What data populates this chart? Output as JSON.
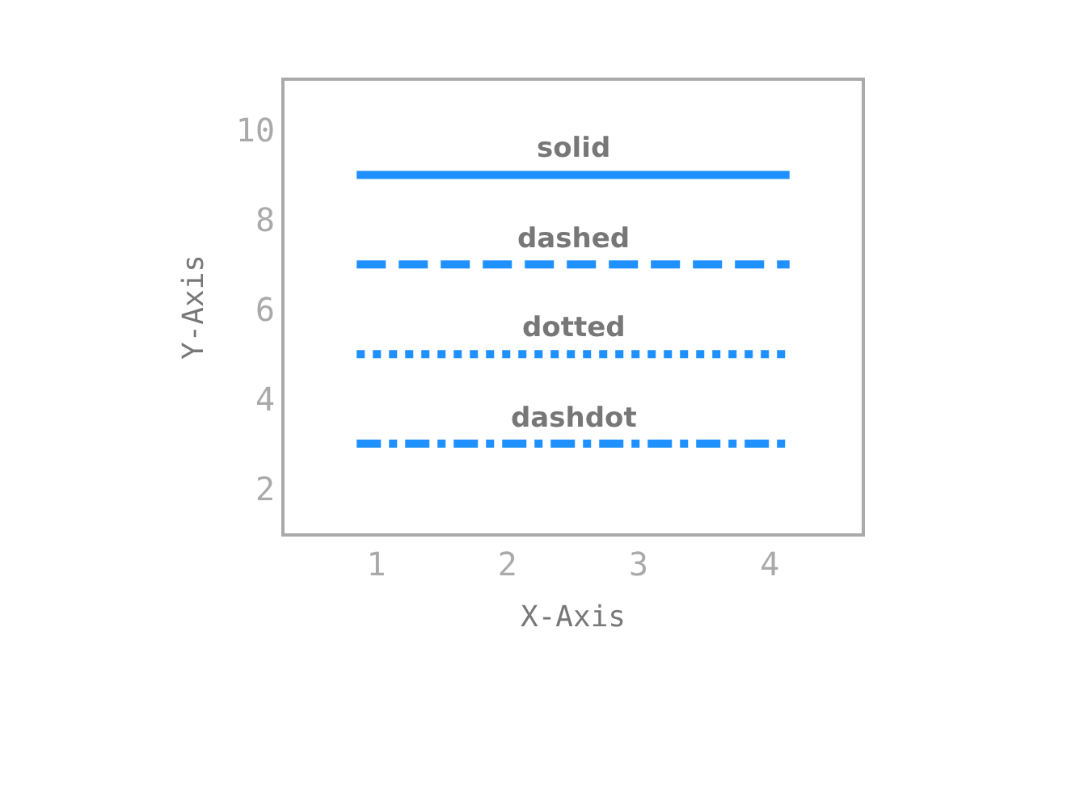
{
  "chart_data": {
    "type": "line",
    "xlabel": "X-Axis",
    "ylabel": "Y-Axis",
    "xlim": [
      0.3,
      4.7
    ],
    "ylim": [
      1,
      11.1
    ],
    "xticks": [
      1,
      2,
      3,
      4
    ],
    "yticks": [
      2,
      4,
      6,
      8,
      10
    ],
    "marker": "none",
    "x": [
      0.85,
      4.15
    ],
    "series": [
      {
        "name": "solid",
        "color": "#1e90ff",
        "line_style": "solid",
        "values": [
          9,
          9
        ]
      },
      {
        "name": "dashed",
        "color": "#1e90ff",
        "line_style": "dashed",
        "values": [
          7,
          7
        ]
      },
      {
        "name": "dotted",
        "color": "#1e90ff",
        "line_style": "dotted",
        "values": [
          5,
          5
        ]
      },
      {
        "name": "dashdot",
        "color": "#1e90ff",
        "line_style": "dashdot",
        "values": [
          3,
          3
        ]
      }
    ]
  }
}
